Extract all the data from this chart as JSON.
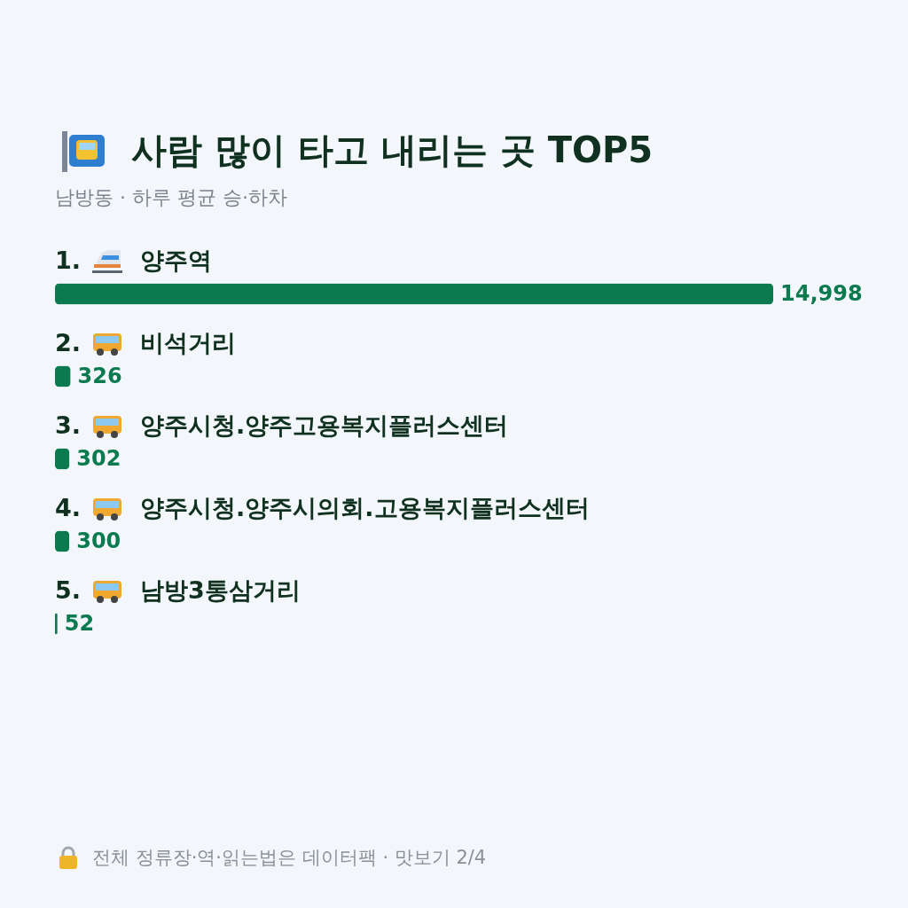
{
  "chart_data": {
    "type": "bar",
    "orientation": "horizontal",
    "title": "사람 많이 타고 내리는 곳 TOP5",
    "subtitle": "남방동 · 하루 평균 승·하차",
    "categories": [
      "1. 양주역",
      "2. 비석거리",
      "3. 양주시청.양주고용복지플러스센터",
      "4. 양주시청.양주시의회.고용복지플러스센터",
      "5. 남방3통삼거리"
    ],
    "values": [
      14998,
      326,
      302,
      300,
      52
    ],
    "color": "#0b7a4f",
    "value_labels": [
      "14,998",
      "326",
      "302",
      "300",
      "52"
    ],
    "annotations": [
      "전체 정류장·역·읽는법은 데이터팩 · 맛보기 2/4"
    ]
  }
}
